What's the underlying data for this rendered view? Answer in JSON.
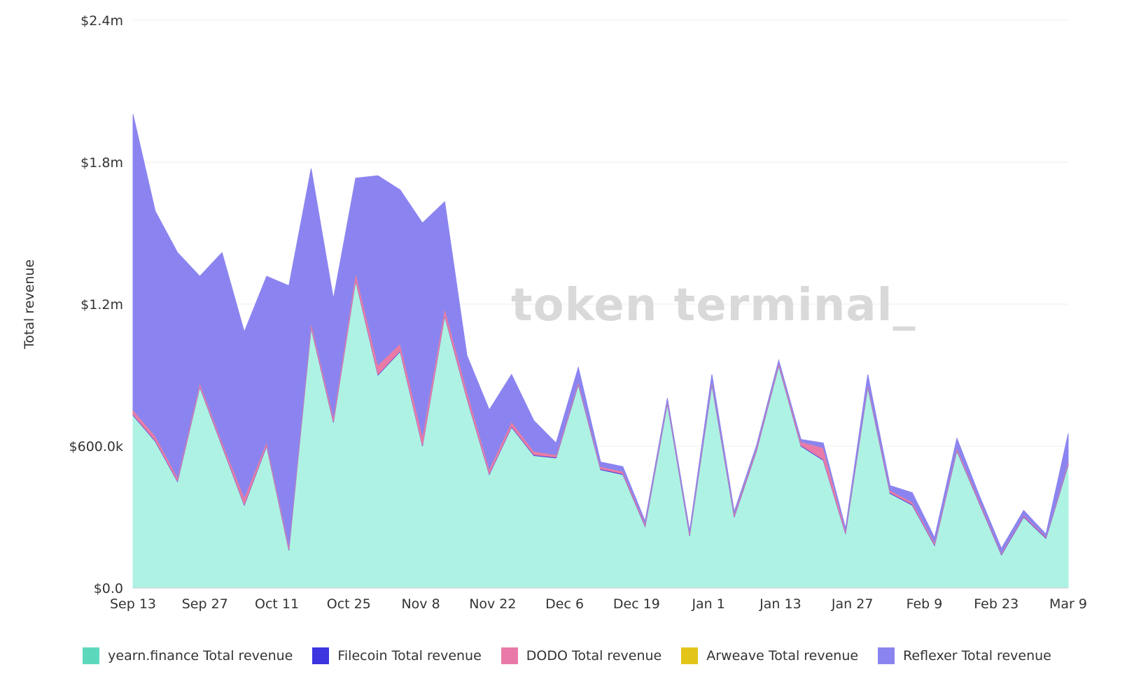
{
  "chart_data": {
    "type": "area",
    "stacked": true,
    "title": "",
    "xlabel": "",
    "ylabel": "Total revenue",
    "ylim": [
      0,
      2400000
    ],
    "yticks": [
      0,
      600000,
      1200000,
      1800000,
      2400000
    ],
    "ytick_labels": [
      "$0.0",
      "$600.0k",
      "$1.2m",
      "$1.8m",
      "$2.4m"
    ],
    "grid": true,
    "legend": "bottom",
    "watermark": "token terminal_",
    "xtick_labels": [
      "Sep 13",
      "Sep 27",
      "Oct 11",
      "Oct 25",
      "Nov 8",
      "Nov 22",
      "Dec 6",
      "Dec 19",
      "Jan 1",
      "Jan 13",
      "Jan 27",
      "Feb 9",
      "Feb 23",
      "Mar 9"
    ],
    "x": [
      "Sep 13",
      "Sep 17",
      "Sep 21",
      "Sep 25",
      "Sep 29",
      "Oct 3",
      "Oct 7",
      "Oct 11",
      "Oct 15",
      "Oct 19",
      "Oct 23",
      "Oct 27",
      "Oct 31",
      "Nov 4",
      "Nov 8",
      "Nov 12",
      "Nov 16",
      "Nov 20",
      "Nov 24",
      "Nov 28",
      "Dec 2",
      "Dec 6",
      "Dec 10",
      "Dec 14",
      "Dec 19",
      "Dec 23",
      "Dec 27",
      "Jan 1",
      "Jan 5",
      "Jan 9",
      "Jan 13",
      "Jan 17",
      "Jan 21",
      "Jan 27",
      "Jan 31",
      "Feb 4",
      "Feb 9",
      "Feb 13",
      "Feb 17",
      "Feb 23",
      "Feb 27",
      "Mar 3",
      "Mar 9"
    ],
    "series": [
      {
        "name": "yearn.finance Total revenue",
        "color": "#aef2e4",
        "values": [
          730000,
          620000,
          450000,
          850000,
          600000,
          350000,
          600000,
          160000,
          1100000,
          700000,
          1300000,
          900000,
          1000000,
          600000,
          1150000,
          800000,
          480000,
          680000,
          560000,
          550000,
          860000,
          500000,
          480000,
          260000,
          780000,
          220000,
          860000,
          300000,
          580000,
          940000,
          600000,
          540000,
          230000,
          850000,
          400000,
          350000,
          180000,
          580000,
          360000,
          140000,
          300000,
          210000,
          520000
        ]
      },
      {
        "name": "Filecoin Total revenue",
        "color": "#3c35e0",
        "values": [
          3000,
          3000,
          3000,
          3000,
          3000,
          3000,
          3000,
          3000,
          3000,
          3000,
          3000,
          3000,
          3000,
          3000,
          3000,
          3000,
          3000,
          3000,
          3000,
          3000,
          3000,
          3000,
          3000,
          3000,
          3000,
          3000,
          3000,
          3000,
          3000,
          3000,
          3000,
          3000,
          3000,
          3000,
          3000,
          3000,
          3000,
          3000,
          3000,
          3000,
          3000,
          3000,
          3000
        ]
      },
      {
        "name": "DODO Total revenue",
        "color": "#e97aa7",
        "values": [
          20000,
          20000,
          15000,
          15000,
          15000,
          30000,
          15000,
          15000,
          20000,
          20000,
          30000,
          40000,
          30000,
          40000,
          30000,
          30000,
          20000,
          20000,
          15000,
          10000,
          10000,
          10000,
          10000,
          10000,
          10000,
          10000,
          10000,
          10000,
          10000,
          10000,
          15000,
          50000,
          10000,
          10000,
          10000,
          10000,
          10000,
          10000,
          10000,
          5000,
          5000,
          5000,
          10000
        ]
      },
      {
        "name": "Arweave Total revenue",
        "color": "#e3c51a",
        "values": [
          0,
          0,
          0,
          0,
          0,
          0,
          0,
          0,
          0,
          0,
          0,
          0,
          0,
          0,
          0,
          0,
          0,
          0,
          0,
          0,
          0,
          0,
          0,
          0,
          0,
          0,
          0,
          0,
          0,
          0,
          0,
          0,
          0,
          0,
          0,
          0,
          0,
          0,
          0,
          0,
          0,
          0,
          0
        ]
      },
      {
        "name": "Reflexer Total revenue",
        "color": "#8b84f0",
        "values": [
          1250000,
          950000,
          950000,
          450000,
          800000,
          700000,
          700000,
          1100000,
          650000,
          500000,
          400000,
          800000,
          650000,
          900000,
          450000,
          150000,
          250000,
          200000,
          130000,
          50000,
          60000,
          20000,
          20000,
          10000,
          10000,
          10000,
          30000,
          10000,
          10000,
          10000,
          10000,
          20000,
          10000,
          40000,
          20000,
          40000,
          20000,
          40000,
          20000,
          20000,
          20000,
          10000,
          120000
        ]
      }
    ]
  },
  "legend_items": [
    {
      "label": "yearn.finance Total revenue",
      "color": "#5ed8bd"
    },
    {
      "label": "Filecoin Total revenue",
      "color": "#3c35e0"
    },
    {
      "label": "DODO Total revenue",
      "color": "#e97aa7"
    },
    {
      "label": "Arweave Total revenue",
      "color": "#e3c51a"
    },
    {
      "label": "Reflexer Total revenue",
      "color": "#8b84f0"
    }
  ]
}
